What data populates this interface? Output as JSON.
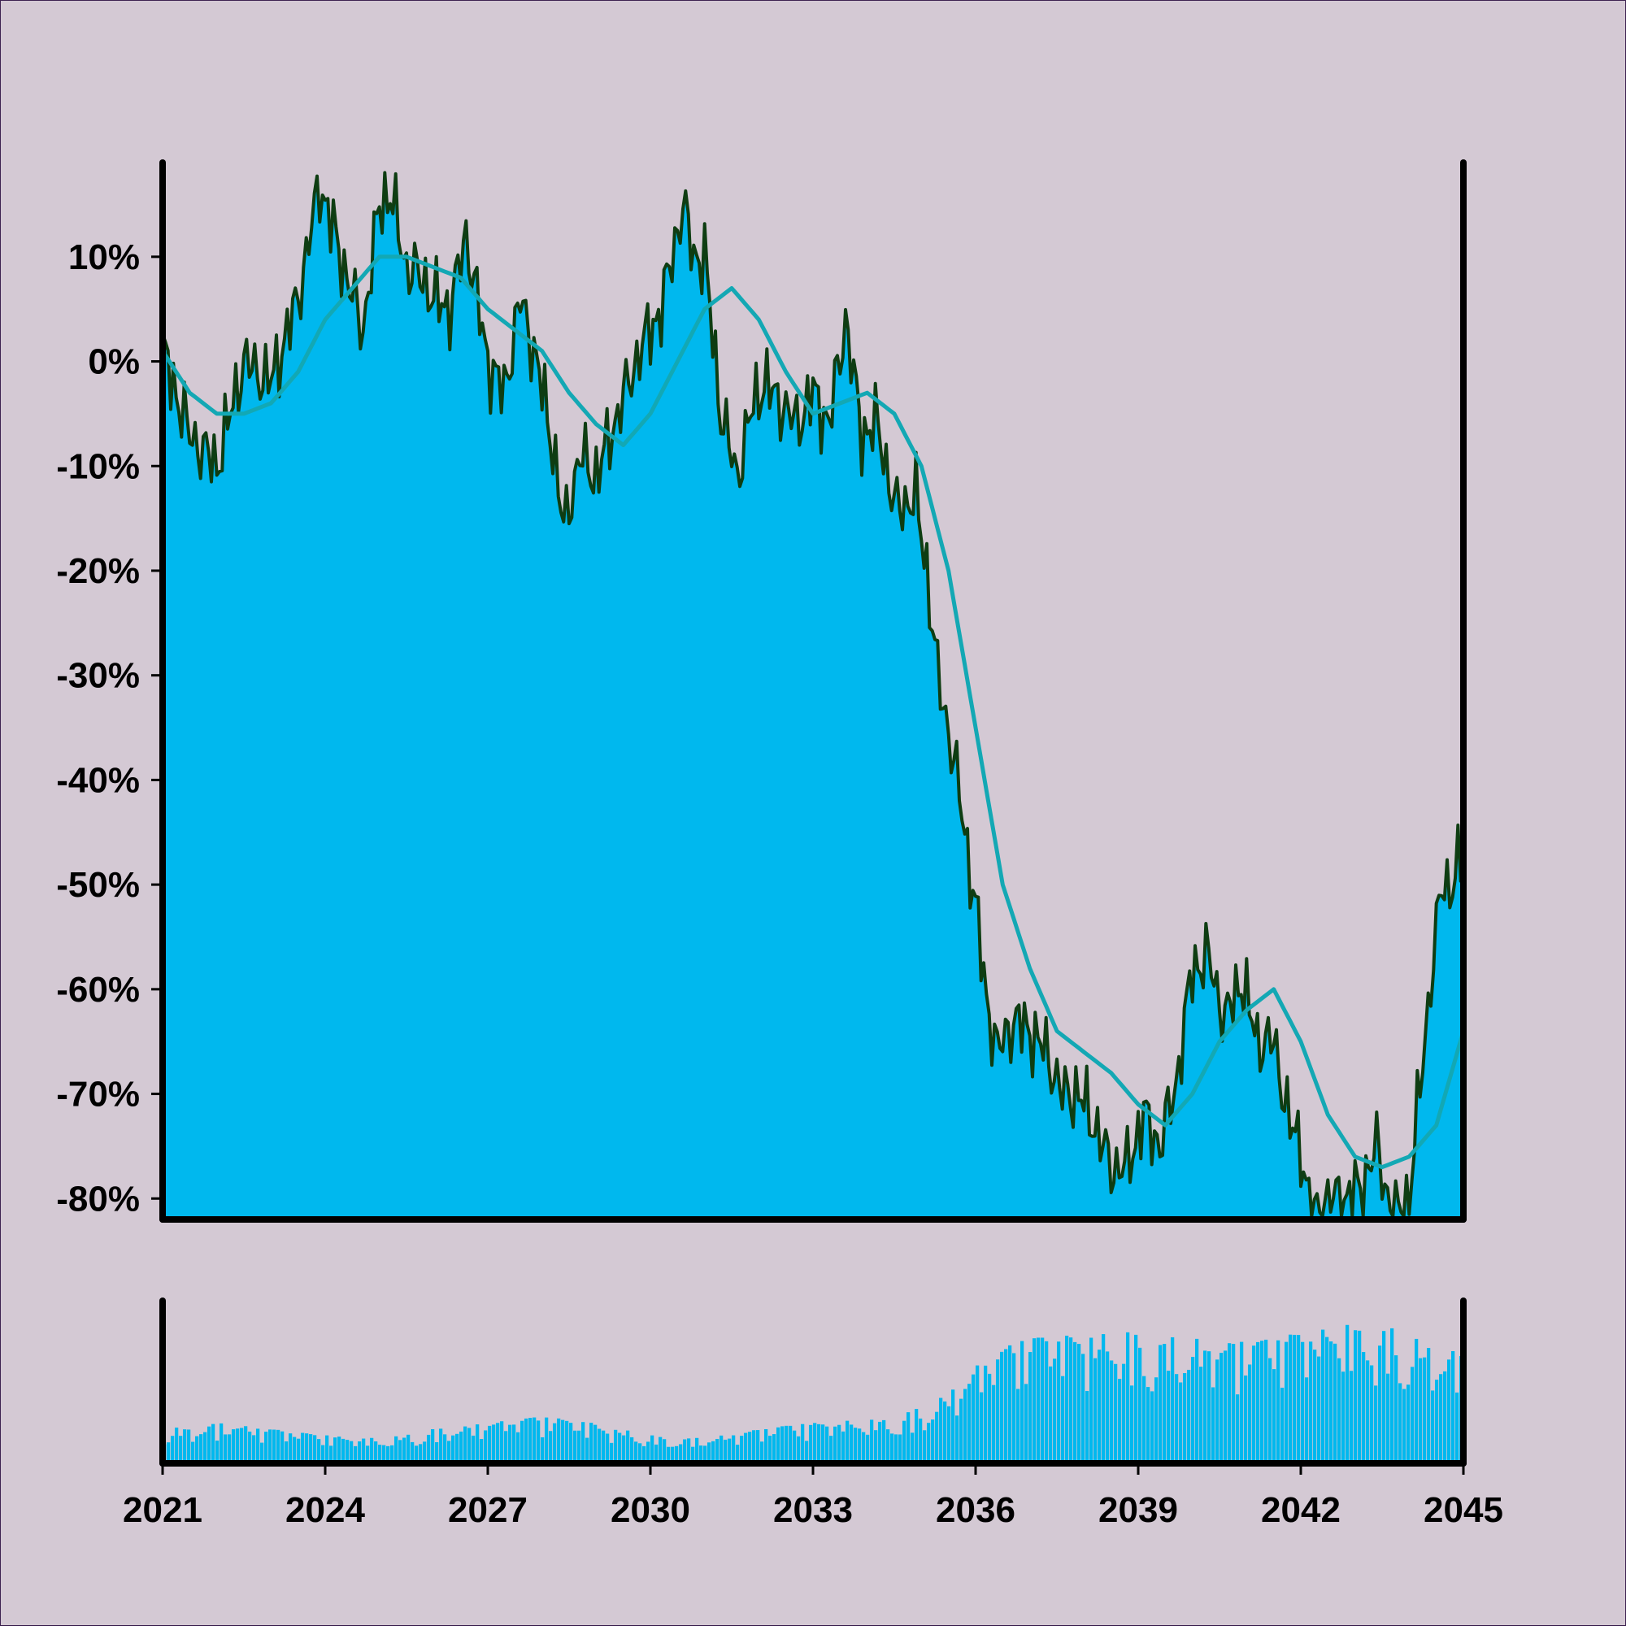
{
  "colors": {
    "background": "#d4c9d4",
    "area_fill": "#00b8ee",
    "line": "#0e3d12",
    "moving_average": "#13a8b4",
    "volume": "#00b8ee",
    "axis": "#000000",
    "frame_border": "#3d2250"
  },
  "chart_data": [
    {
      "type": "area",
      "series": [
        {
          "kind": "price_area_line",
          "x": [
            2021.0,
            2021.5,
            2022.0,
            2022.5,
            2023.0,
            2023.5,
            2023.9,
            2024.4,
            2024.7,
            2025.0,
            2025.2,
            2025.5,
            2025.8,
            2026.0,
            2026.3,
            2026.6,
            2027.0,
            2027.3,
            2027.6,
            2027.9,
            2028.2,
            2028.4,
            2028.7,
            2029.0,
            2029.4,
            2029.8,
            2030.2,
            2030.6,
            2030.8,
            2031.0,
            2031.3,
            2031.6,
            2031.9,
            2032.1,
            2032.4,
            2032.7,
            2033.0,
            2033.3,
            2033.6,
            2033.9,
            2034.2,
            2034.5,
            2034.9,
            2035.1,
            2035.3,
            2035.6,
            2035.8,
            2036.0,
            2036.2,
            2036.4,
            2036.7,
            2037.0,
            2037.3,
            2037.6,
            2037.9,
            2038.2,
            2038.5,
            2038.8,
            2039.1,
            2039.4,
            2039.7,
            2040.0,
            2040.3,
            2040.6,
            2040.9,
            2041.2,
            2041.5,
            2041.8,
            2042.0,
            2042.2,
            2042.5,
            2042.8,
            2043.1,
            2043.4,
            2043.7,
            2044.0,
            2044.3,
            2044.6,
            2044.8,
            2045.0
          ],
          "y": [
            1,
            -7,
            -10,
            0,
            -2,
            6,
            17,
            8,
            3,
            15,
            16,
            9,
            8,
            6,
            5,
            12,
            0,
            -3,
            6,
            0,
            -8,
            -16,
            -9,
            -11,
            -5,
            1,
            5,
            15,
            10,
            10,
            -5,
            -11,
            -4,
            -2,
            -4,
            -6,
            -3,
            -6,
            4,
            -7,
            -6,
            -14,
            -13,
            -20,
            -30,
            -38,
            -45,
            -52,
            -61,
            -66,
            -63,
            -64,
            -66,
            -70,
            -70,
            -73,
            -77,
            -77,
            -72,
            -75,
            -69,
            -58,
            -57,
            -63,
            -59,
            -65,
            -65,
            -73,
            -75,
            -82,
            -80,
            -80,
            -79,
            -75,
            -82,
            -80,
            -64,
            -50,
            -50,
            -47
          ]
        },
        {
          "kind": "moving_average",
          "x": [
            2021.0,
            2021.5,
            2022.0,
            2022.5,
            2023.0,
            2023.5,
            2024.0,
            2024.5,
            2025.0,
            2025.5,
            2026.0,
            2026.5,
            2027.0,
            2027.5,
            2028.0,
            2028.5,
            2029.0,
            2029.5,
            2030.0,
            2030.5,
            2031.0,
            2031.5,
            2032.0,
            2032.5,
            2033.0,
            2033.5,
            2034.0,
            2034.5,
            2035.0,
            2035.5,
            2036.0,
            2036.5,
            2037.0,
            2037.5,
            2038.0,
            2038.5,
            2039.0,
            2039.5,
            2040.0,
            2040.5,
            2041.0,
            2041.5,
            2042.0,
            2042.5,
            2043.0,
            2043.5,
            2044.0,
            2044.5,
            2045.0
          ],
          "y": [
            1,
            -3,
            -5,
            -5,
            -4,
            -1,
            4,
            7,
            10,
            10,
            9,
            8,
            5,
            3,
            1,
            -3,
            -6,
            -8,
            -5,
            0,
            5,
            7,
            4,
            -1,
            -5,
            -4,
            -3,
            -5,
            -10,
            -20,
            -35,
            -50,
            -58,
            -64,
            -66,
            -68,
            -71,
            -73,
            -70,
            -65,
            -62,
            -60,
            -65,
            -72,
            -76,
            -77,
            -76,
            -73,
            -64
          ]
        }
      ],
      "ylim": [
        -82,
        19
      ],
      "xlim": [
        2021,
        2045
      ],
      "yticks": [
        10,
        0,
        -10,
        -20,
        -30,
        -40,
        -50,
        -60,
        -70,
        -80
      ],
      "ytick_labels": [
        "10%",
        "0%",
        "-10%",
        "-20%",
        "-30%",
        "-40%",
        "-50%",
        "-60%",
        "-70%",
        "-80%"
      ],
      "grid": false
    },
    {
      "type": "bar",
      "series": [
        {
          "kind": "volume_envelope",
          "x": [
            2021.0,
            2022.0,
            2023.0,
            2024.0,
            2025.0,
            2026.0,
            2027.0,
            2028.0,
            2029.0,
            2030.0,
            2031.0,
            2032.0,
            2033.0,
            2034.0,
            2034.5,
            2035.0,
            2035.5,
            2036.0,
            2036.5,
            2037.0,
            2037.5,
            2038.0,
            2038.5,
            2039.0,
            2039.5,
            2040.0,
            2040.5,
            2041.0,
            2041.5,
            2042.0,
            2042.5,
            2043.0,
            2043.5,
            2044.0,
            2044.5,
            2045.0
          ],
          "y": [
            0.22,
            0.26,
            0.22,
            0.18,
            0.16,
            0.22,
            0.26,
            0.3,
            0.26,
            0.18,
            0.16,
            0.22,
            0.26,
            0.28,
            0.3,
            0.36,
            0.46,
            0.62,
            0.74,
            0.8,
            0.82,
            0.84,
            0.84,
            0.84,
            0.82,
            0.8,
            0.8,
            0.78,
            0.8,
            0.84,
            0.86,
            0.9,
            0.88,
            0.84,
            0.76,
            0.7
          ]
        }
      ],
      "xticks": [
        2021,
        2024,
        2027,
        2030,
        2033,
        2036,
        2039,
        2042,
        2045
      ],
      "xtick_labels": [
        "2021",
        "2024",
        "2027",
        "2030",
        "2033",
        "2036",
        "2039",
        "2042",
        "2045"
      ],
      "xlim": [
        2021,
        2045
      ],
      "grid": false
    }
  ]
}
